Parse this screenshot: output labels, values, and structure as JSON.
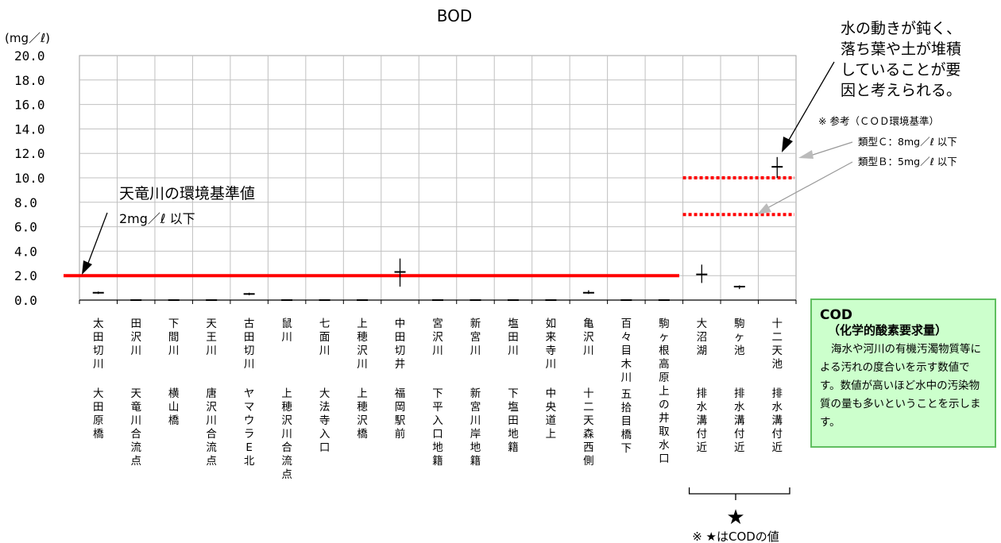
{
  "chart_data": {
    "type": "scatter",
    "title": "BOD",
    "y_unit": "(mg／ℓ)",
    "ylim": [
      0,
      20
    ],
    "yticks": [
      "20.0",
      "18.0",
      "16.0",
      "14.0",
      "12.0",
      "10.0",
      "8.0",
      "6.0",
      "4.0",
      "2.0",
      "0.0"
    ],
    "grid": true,
    "categories": [
      [
        "太田切川",
        "大田原橋"
      ],
      [
        "田沢川",
        "天竜川合流点"
      ],
      [
        "下間川",
        "横山橋"
      ],
      [
        "天王川",
        "唐沢川合流点"
      ],
      [
        "古田切川",
        "ヤマウラE北"
      ],
      [
        "鼠川",
        "上穂沢川合流点"
      ],
      [
        "七面川",
        "大法寺入口"
      ],
      [
        "上穂沢川",
        "上穂沢橋"
      ],
      [
        "中田切井",
        "福岡駅前"
      ],
      [
        "宮沢川",
        "下平入口地籍"
      ],
      [
        "新宮川",
        "新宮川岸地籍"
      ],
      [
        "塩田川",
        "下塩田地籍"
      ],
      [
        "如来寺川",
        "中央道上"
      ],
      [
        "亀沢川",
        "十二天森西側"
      ],
      [
        "百々目木川",
        "五拾目橋下"
      ],
      [
        "駒ヶ根高原上の井取水口",
        ""
      ],
      [
        "大沼湖",
        "排水溝付近"
      ],
      [
        "駒ヶ池",
        "排水溝付近"
      ],
      [
        "十二天池",
        "排水溝付近"
      ]
    ],
    "values": [
      {
        "mean": 0.6,
        "min": 0.5,
        "max": 0.7
      },
      {
        "mean": 0.0,
        "min": 0.0,
        "max": 0.0
      },
      {
        "mean": 0.0,
        "min": 0.0,
        "max": 0.0
      },
      {
        "mean": 0.0,
        "min": 0.0,
        "max": 0.0
      },
      {
        "mean": 0.5,
        "min": 0.4,
        "max": 0.6
      },
      {
        "mean": 0.0,
        "min": 0.0,
        "max": 0.0
      },
      {
        "mean": 0.0,
        "min": 0.0,
        "max": 0.0
      },
      {
        "mean": 0.0,
        "min": 0.0,
        "max": 0.0
      },
      {
        "mean": 2.3,
        "min": 1.1,
        "max": 3.4
      },
      {
        "mean": 0.0,
        "min": 0.0,
        "max": 0.0
      },
      {
        "mean": 0.0,
        "min": 0.0,
        "max": 0.0
      },
      {
        "mean": 0.0,
        "min": 0.0,
        "max": 0.0
      },
      {
        "mean": 0.0,
        "min": 0.0,
        "max": 0.0
      },
      {
        "mean": 0.6,
        "min": 0.5,
        "max": 0.8
      },
      {
        "mean": 0.0,
        "min": 0.0,
        "max": 0.0
      },
      {
        "mean": 0.0,
        "min": 0.0,
        "max": 0.0
      },
      {
        "mean": 2.1,
        "min": 1.4,
        "max": 2.9
      },
      {
        "mean": 1.1,
        "min": 0.9,
        "max": 1.2
      },
      {
        "mean": 10.9,
        "min": 10.0,
        "max": 11.7
      }
    ],
    "reference_lines": [
      {
        "value": 2.0,
        "color": "#ff0000",
        "style": "solid",
        "label": "天竜川の環境基準値",
        "label2": "2mg／ℓ 以下"
      },
      {
        "value": 10.0,
        "color": "#ff0000",
        "style": "dotted",
        "from_category": 16
      },
      {
        "value": 7.0,
        "color": "#ff0000",
        "style": "dotted",
        "from_category": 16
      }
    ],
    "annotations": {
      "cause_note": [
        "水の動きが鈍く、",
        "落ち葉や土が堆積",
        "していることが要",
        "因と考えられる。"
      ],
      "cod_ref_title": "※ 参考（ＣＯＤ環境基準）",
      "cod_ref_c": "類型Ｃ：8mg／ℓ 以下",
      "cod_ref_b": "類型Ｂ：5mg／ℓ 以下",
      "star": "★",
      "star_note": "※ ★はCODの値"
    }
  },
  "cod_box": {
    "title": "COD",
    "subtitle": "（化学的酸素要求量）",
    "body": "海水や河川の有機汚濁物質等による汚れの度合いを示す数値です。数値が高いほど水中の汚染物質の量も多いということを示します。"
  },
  "colors": {
    "reference": "#ff0000",
    "grid": "#c0c0c0",
    "note_bg": "#ccffcc",
    "note_border": "#5fbf5f"
  }
}
